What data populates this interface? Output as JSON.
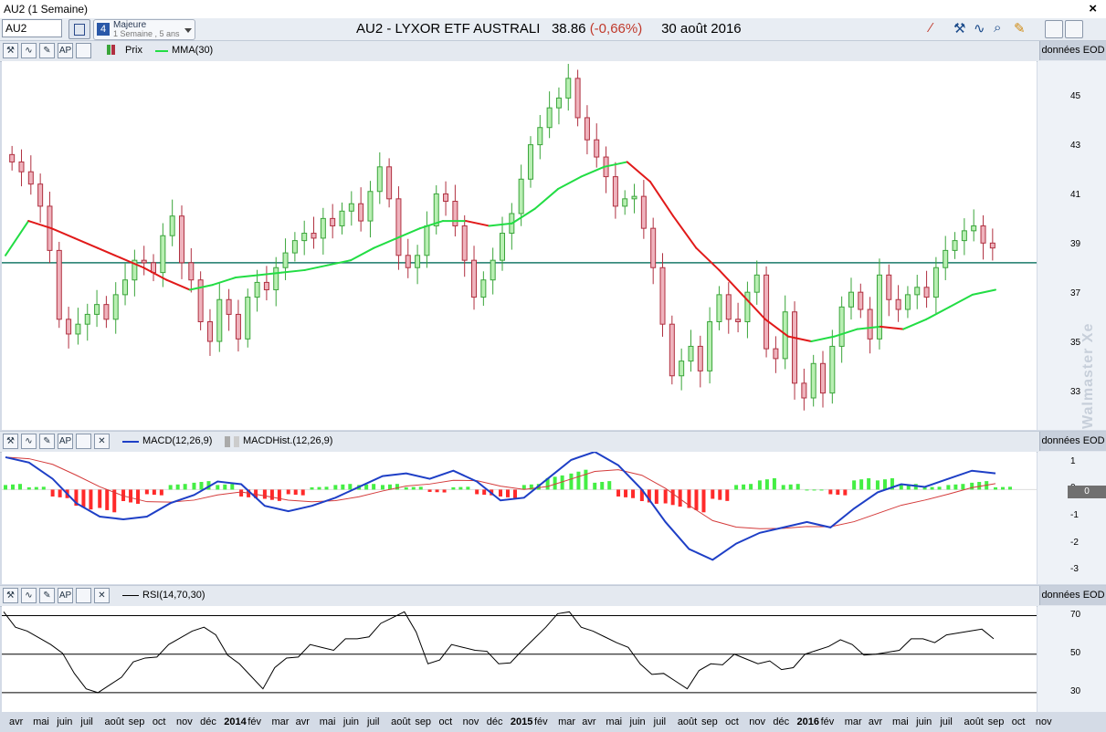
{
  "window_title": "AU2 (1 Semaine)",
  "symbol_input": "AU2",
  "period": {
    "line1": "Majeure",
    "line2": "1 Semaine , 5 ans"
  },
  "header": {
    "instrument": "AU2 - LYXOR ETF AUSTRALI",
    "price": "38.86",
    "change": "(-0,66%)",
    "date": "30 août 2016"
  },
  "toolbar_icons": [
    "draw-line-icon",
    "tools-icon",
    "wave-icon",
    "zoom-icon",
    "highlighter-icon",
    "chart-style-icon",
    "alert-icon"
  ],
  "panels": {
    "price": {
      "legend_price": "Prix",
      "legend_ma": "MMA(30)",
      "source": "données EOD",
      "y_ticks": [
        "45",
        "43",
        "41",
        "39",
        "37",
        "35",
        "33"
      ]
    },
    "macd": {
      "legend_macd": "MACD(12,26,9)",
      "legend_hist": "MACDHist.(12,26,9)",
      "source": "données EOD",
      "y_ticks": [
        "1",
        "0",
        "-1",
        "-2",
        "-3"
      ],
      "current_value": "0"
    },
    "rsi": {
      "legend": "RSI(14,70,30)",
      "source": "données EOD",
      "y_ticks": [
        "70",
        "50",
        "30"
      ]
    }
  },
  "watermark": "Walmaster Xe",
  "x_axis": [
    {
      "label": "avr",
      "bold": false
    },
    {
      "label": "mai",
      "bold": false
    },
    {
      "label": "juin",
      "bold": false
    },
    {
      "label": "juil",
      "bold": false
    },
    {
      "label": "août",
      "bold": false
    },
    {
      "label": "sep",
      "bold": false
    },
    {
      "label": "oct",
      "bold": false
    },
    {
      "label": "nov",
      "bold": false
    },
    {
      "label": "déc",
      "bold": false
    },
    {
      "label": "2014",
      "bold": true
    },
    {
      "label": "fév",
      "bold": false
    },
    {
      "label": "mar",
      "bold": false
    },
    {
      "label": "avr",
      "bold": false
    },
    {
      "label": "mai",
      "bold": false
    },
    {
      "label": "juin",
      "bold": false
    },
    {
      "label": "juil",
      "bold": false
    },
    {
      "label": "août",
      "bold": false
    },
    {
      "label": "sep",
      "bold": false
    },
    {
      "label": "oct",
      "bold": false
    },
    {
      "label": "nov",
      "bold": false
    },
    {
      "label": "déc",
      "bold": false
    },
    {
      "label": "2015",
      "bold": true
    },
    {
      "label": "fév",
      "bold": false
    },
    {
      "label": "mar",
      "bold": false
    },
    {
      "label": "avr",
      "bold": false
    },
    {
      "label": "mai",
      "bold": false
    },
    {
      "label": "juin",
      "bold": false
    },
    {
      "label": "juil",
      "bold": false
    },
    {
      "label": "août",
      "bold": false
    },
    {
      "label": "sep",
      "bold": false
    },
    {
      "label": "oct",
      "bold": false
    },
    {
      "label": "nov",
      "bold": false
    },
    {
      "label": "déc",
      "bold": false
    },
    {
      "label": "2016",
      "bold": true
    },
    {
      "label": "fév",
      "bold": false
    },
    {
      "label": "mar",
      "bold": false
    },
    {
      "label": "avr",
      "bold": false
    },
    {
      "label": "mai",
      "bold": false
    },
    {
      "label": "juin",
      "bold": false
    },
    {
      "label": "juil",
      "bold": false
    },
    {
      "label": "août",
      "bold": false
    },
    {
      "label": "sep",
      "bold": false
    },
    {
      "label": "oct",
      "bold": false
    },
    {
      "label": "nov",
      "bold": false
    }
  ],
  "colors": {
    "up": "#3aa53a",
    "up_fill": "#b9efb3",
    "down": "#b03040",
    "down_fill": "#efb3bd",
    "ma_up": "#22dd44",
    "ma_down": "#e11a1a",
    "hline": "#1a7a6a",
    "macd": "#1e3fc6",
    "signal": "#d43b3b",
    "hist_up": "#44ee44",
    "hist_down": "#ff2a2a"
  },
  "chart_data": [
    {
      "type": "candlestick",
      "title": "AU2 - LYXOR ETF AUSTRALI",
      "ylim": [
        31.5,
        46.5
      ],
      "horizontal_line": 38.3,
      "close_series": [
        42.4,
        42.0,
        41.5,
        40.6,
        38.8,
        36.0,
        35.4,
        35.8,
        36.2,
        36.6,
        36.0,
        37.0,
        37.6,
        38.4,
        38.3,
        37.9,
        39.4,
        40.2,
        38.3,
        37.6,
        35.9,
        35.1,
        36.8,
        36.2,
        35.2,
        36.9,
        37.5,
        37.2,
        38.1,
        38.7,
        39.2,
        39.5,
        39.3,
        40.1,
        39.8,
        40.4,
        40.7,
        40.0,
        41.2,
        42.2,
        40.9,
        38.6,
        38.1,
        38.6,
        39.8,
        41.1,
        40.8,
        39.8,
        38.4,
        36.9,
        37.6,
        38.4,
        39.5,
        40.3,
        41.7,
        43.1,
        43.8,
        44.6,
        45.0,
        45.8,
        44.2,
        43.3,
        42.6,
        41.8,
        40.6,
        40.9,
        41.0,
        39.7,
        38.1,
        35.8,
        33.7,
        34.3,
        34.9,
        33.9,
        35.9,
        37.0,
        36.0,
        35.9,
        37.1,
        37.8,
        34.8,
        34.4,
        36.3,
        33.4,
        32.8,
        34.2,
        33.0,
        34.9,
        36.5,
        37.1,
        36.4,
        35.2,
        37.8,
        36.8,
        36.4,
        37.0,
        37.3,
        36.9,
        38.1,
        38.8,
        39.2,
        39.6,
        39.8,
        39.1,
        38.9
      ],
      "ma_series": [
        38.6,
        40.0,
        39.7,
        39.3,
        38.9,
        38.5,
        38.1,
        37.6,
        37.2,
        37.4,
        37.7,
        37.8,
        37.9,
        38.0,
        38.2,
        38.4,
        38.9,
        39.3,
        39.7,
        40.0,
        40.0,
        39.8,
        39.9,
        40.5,
        41.3,
        41.8,
        42.2,
        42.4,
        41.6,
        40.2,
        38.9,
        38.0,
        37.0,
        36.0,
        35.3,
        35.1,
        35.3,
        35.6,
        35.7,
        35.6,
        36.0,
        36.5,
        37.0,
        37.2
      ],
      "x_labels": [
        "avr",
        "mai",
        "juin",
        "juil",
        "août",
        "sep",
        "oct",
        "nov",
        "déc",
        "2014",
        "fév",
        "mar",
        "avr",
        "mai",
        "juin",
        "juil",
        "août",
        "sep",
        "oct",
        "nov",
        "déc",
        "2015",
        "fév",
        "mar",
        "avr",
        "mai",
        "juin",
        "juil",
        "août",
        "sep",
        "oct",
        "nov",
        "déc",
        "2016",
        "fév",
        "mar",
        "avr",
        "mai",
        "juin",
        "juil",
        "août",
        "sep",
        "oct",
        "nov"
      ]
    },
    {
      "type": "line",
      "title": "MACD(12,26,9)",
      "ylim": [
        -3.5,
        1.4
      ],
      "series": [
        {
          "name": "MACD(12,26,9)",
          "values": [
            1.2,
            1.0,
            0.4,
            -0.5,
            -1.0,
            -1.1,
            -1.0,
            -0.5,
            -0.2,
            0.3,
            0.2,
            -0.6,
            -0.8,
            -0.6,
            -0.3,
            0.1,
            0.5,
            0.6,
            0.4,
            0.7,
            0.3,
            -0.4,
            -0.3,
            0.4,
            1.1,
            1.4,
            0.9,
            0.0,
            -1.2,
            -2.2,
            -2.6,
            -2.0,
            -1.6,
            -1.4,
            -1.2,
            -1.4,
            -0.7,
            -0.1,
            0.2,
            0.1,
            0.4,
            0.7,
            0.6
          ]
        },
        {
          "name": "MACDHist.(12,26,9)",
          "values": [
            0.2,
            0.1,
            -0.3,
            -0.7,
            -0.8,
            -0.5,
            -0.2,
            0.2,
            0.3,
            0.2,
            -0.3,
            -0.4,
            -0.2,
            0.1,
            0.2,
            0.2,
            0.2,
            0.1,
            -0.1,
            0.1,
            -0.2,
            -0.3,
            0.2,
            0.5,
            0.7,
            0.3,
            -0.3,
            -0.5,
            -0.6,
            -0.8,
            -0.4,
            0.2,
            0.4,
            0.2,
            0.0,
            -0.2,
            0.4,
            0.4,
            0.2,
            0.1,
            0.2,
            0.3,
            0.1
          ]
        }
      ]
    },
    {
      "type": "line",
      "title": "RSI(14,70,30)",
      "ylim": [
        20,
        75
      ],
      "levels": [
        70,
        50,
        30
      ],
      "series": [
        {
          "name": "RSI(14,70,30)",
          "values": [
            72,
            62,
            55,
            40,
            30,
            38,
            48,
            55,
            62,
            60,
            45,
            32,
            48,
            55,
            52,
            58,
            66,
            72,
            45,
            55,
            52,
            45,
            52,
            64,
            72,
            62,
            56,
            45,
            40,
            32,
            45,
            50,
            45,
            42,
            50,
            54,
            55,
            50,
            52,
            58,
            60,
            62,
            58
          ]
        }
      ]
    }
  ]
}
